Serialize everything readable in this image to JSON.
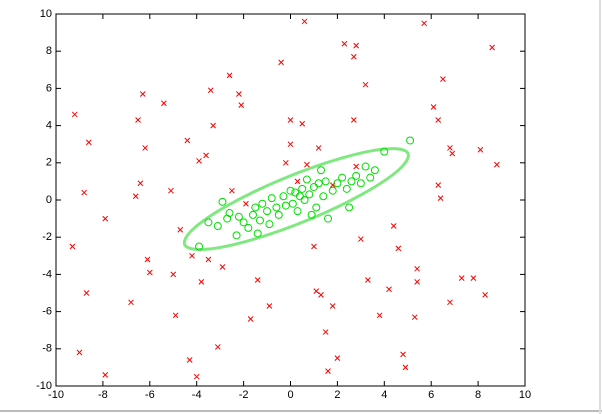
{
  "chart_data": {
    "type": "scatter",
    "xlim": [
      -10,
      10
    ],
    "ylim": [
      -10,
      10
    ],
    "xticks": [
      -10,
      -8,
      -6,
      -4,
      -2,
      0,
      2,
      4,
      6,
      8,
      10
    ],
    "yticks": [
      -10,
      -8,
      -6,
      -4,
      -2,
      0,
      2,
      4,
      6,
      8,
      10
    ],
    "grid": false,
    "series": [
      {
        "color": "#ff0000",
        "marker": "x",
        "x": [
          -9.2,
          -8.6,
          -8.8,
          -7.9,
          -9.3,
          -8.7,
          -9.0,
          -7.9,
          -6.4,
          -6.6,
          -6.8,
          -6.1,
          -6.0,
          -6.2,
          -6.3,
          -5.4,
          -6.5,
          -5.1,
          -5.0,
          -4.9,
          -4.3,
          -4.0,
          -4.7,
          -4.2,
          -3.8,
          -3.1,
          -3.5,
          -2.9,
          -2.6,
          -3.4,
          -2.1,
          -2.2,
          -3.3,
          -4.4,
          -3.9,
          -3.6,
          -2.5,
          -1.9,
          -1.4,
          -1.7,
          -0.9,
          -0.4,
          0.6,
          0.0,
          0.5,
          0.0,
          -0.2,
          0.3,
          0.7,
          1.0,
          1.1,
          1.5,
          1.8,
          1.6,
          1.3,
          2.0,
          2.3,
          2.8,
          2.7,
          3.2,
          2.8,
          2.7,
          3.0,
          3.3,
          3.8,
          4.2,
          4.8,
          4.9,
          4.6,
          4.4,
          5.3,
          5.4,
          5.7,
          6.5,
          6.1,
          6.3,
          6.3,
          6.9,
          6.8,
          6.8,
          7.3,
          7.8,
          8.1,
          8.3,
          8.6,
          8.8,
          5.4,
          6.4,
          1.2,
          1.8
        ],
        "y": [
          4.6,
          3.1,
          0.4,
          -1.0,
          -2.5,
          -5.0,
          -8.2,
          -9.4,
          0.9,
          0.2,
          -5.5,
          -3.2,
          -3.9,
          2.8,
          5.7,
          5.2,
          4.3,
          0.5,
          -4.0,
          -6.2,
          -8.6,
          -9.5,
          -1.6,
          -3.0,
          -4.4,
          -7.9,
          -3.2,
          -3.6,
          6.7,
          5.9,
          5.1,
          5.7,
          4.0,
          3.2,
          2.1,
          2.4,
          0.5,
          -0.2,
          -4.3,
          -6.4,
          -5.7,
          7.4,
          9.6,
          4.3,
          4.1,
          3.0,
          2.0,
          1.0,
          1.9,
          -2.5,
          -4.9,
          -7.1,
          -5.7,
          -9.2,
          -5.1,
          -8.5,
          8.4,
          8.3,
          7.7,
          6.2,
          1.8,
          4.3,
          -2.1,
          -4.3,
          -6.2,
          -4.8,
          -8.3,
          -9.0,
          -2.6,
          -1.4,
          -6.3,
          -3.7,
          9.5,
          6.5,
          5.0,
          4.3,
          0.8,
          2.5,
          2.8,
          -5.5,
          -4.2,
          -4.2,
          2.7,
          -5.1,
          8.2,
          1.9,
          -4.4,
          0.1,
          2.8,
          0.8
        ]
      },
      {
        "color": "#00e000",
        "marker": "o",
        "x": [
          -3.9,
          -3.5,
          -3.1,
          -2.7,
          -2.6,
          -2.3,
          -2.2,
          -2.0,
          -1.8,
          -1.6,
          -1.5,
          -1.3,
          -1.2,
          -1.0,
          -0.9,
          -0.8,
          -0.6,
          -0.5,
          -0.3,
          -0.2,
          0.0,
          0.1,
          0.2,
          0.3,
          0.4,
          0.5,
          0.6,
          0.7,
          0.8,
          1.0,
          1.1,
          1.2,
          1.4,
          1.5,
          1.6,
          1.8,
          2.0,
          2.2,
          2.4,
          2.6,
          2.8,
          3.0,
          3.2,
          3.4,
          3.6,
          4.0,
          5.1,
          -1.4,
          0.9,
          2.5,
          -2.9,
          1.3
        ],
        "y": [
          -2.5,
          -1.2,
          -1.4,
          -1.0,
          -0.7,
          -1.9,
          -0.9,
          -1.2,
          -1.5,
          -0.8,
          -0.4,
          -1.1,
          -0.2,
          -0.6,
          -1.3,
          0.1,
          -0.4,
          -0.8,
          0.2,
          -0.3,
          0.5,
          -0.2,
          0.4,
          -0.6,
          0.2,
          0.6,
          0.0,
          1.1,
          0.3,
          0.7,
          -0.4,
          0.9,
          0.2,
          1.0,
          -1.0,
          0.5,
          0.9,
          1.2,
          0.6,
          1.0,
          1.3,
          0.9,
          1.8,
          1.2,
          1.6,
          2.6,
          3.2,
          -1.8,
          -0.8,
          -0.4,
          -0.1,
          1.6
        ]
      }
    ],
    "ellipse": {
      "color": "#80e880",
      "x": [
        5.0,
        4.09,
        2.15,
        -0.3,
        -2.6,
        -4.14,
        -4.5,
        -3.59,
        -1.65,
        0.8,
        3.1,
        4.64
      ],
      "y": [
        2.53,
        2.75,
        2.24,
        1.15,
        -0.24,
        -1.55,
        -2.43,
        -2.65,
        -2.14,
        -1.05,
        0.34,
        1.65
      ]
    }
  }
}
